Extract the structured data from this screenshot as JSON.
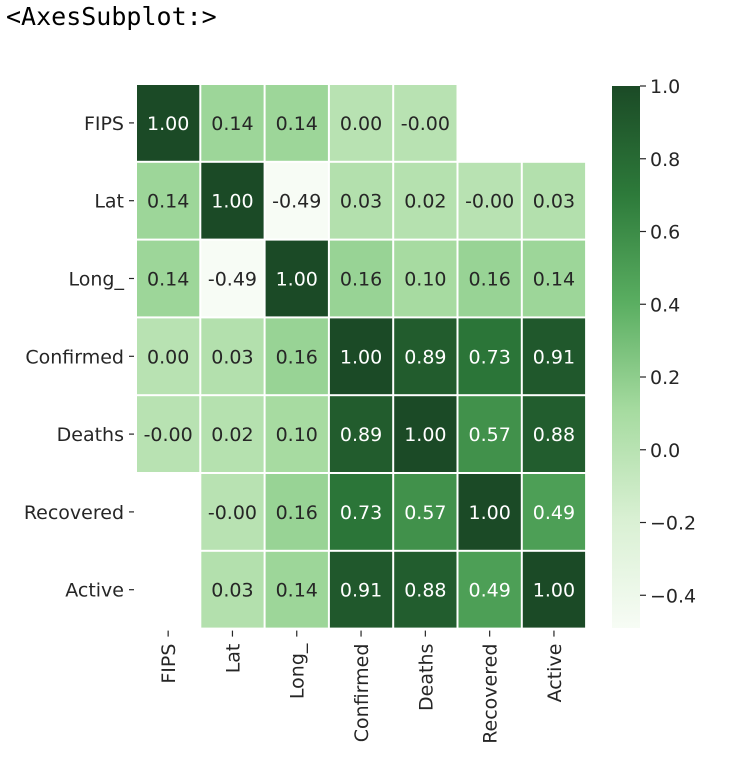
{
  "output_repr": "<AxesSubplot:>",
  "chart_data": {
    "type": "heatmap",
    "title": "",
    "xlabel": "",
    "ylabel": "",
    "rows": [
      "FIPS",
      "Lat",
      "Long_",
      "Confirmed",
      "Deaths",
      "Recovered",
      "Active"
    ],
    "columns": [
      "FIPS",
      "Lat",
      "Long_",
      "Confirmed",
      "Deaths",
      "Recovered",
      "Active"
    ],
    "values": [
      [
        1.0,
        0.14,
        0.14,
        0.0,
        -0.0,
        null,
        null
      ],
      [
        0.14,
        1.0,
        -0.49,
        0.03,
        0.02,
        -0.0,
        0.03
      ],
      [
        0.14,
        -0.49,
        1.0,
        0.16,
        0.1,
        0.16,
        0.14
      ],
      [
        0.0,
        0.03,
        0.16,
        1.0,
        0.89,
        0.73,
        0.91
      ],
      [
        -0.0,
        0.02,
        0.1,
        0.89,
        1.0,
        0.57,
        0.88
      ],
      [
        null,
        -0.0,
        0.16,
        0.73,
        0.57,
        1.0,
        0.49
      ],
      [
        null,
        0.03,
        0.14,
        0.91,
        0.88,
        0.49,
        1.0
      ]
    ],
    "value_format": "2 decimals",
    "annotations": true,
    "colormap": "Greens",
    "colorbar": {
      "vmin": -0.49,
      "vmax": 1.0,
      "ticks": [
        1.0,
        0.8,
        0.6,
        0.4,
        0.2,
        0.0,
        -0.2,
        -0.4
      ],
      "tick_labels": [
        "1.0",
        "0.8",
        "0.6",
        "0.4",
        "0.2",
        "0.0",
        "−0.2",
        "−0.4"
      ]
    },
    "colors": {
      "low": "#f7fcf5",
      "mid": "#a1d99b",
      "high": "#1b4a26",
      "cell_border": "#ffffff",
      "text_dark": "#262626",
      "text_light": "#ffffff"
    }
  }
}
